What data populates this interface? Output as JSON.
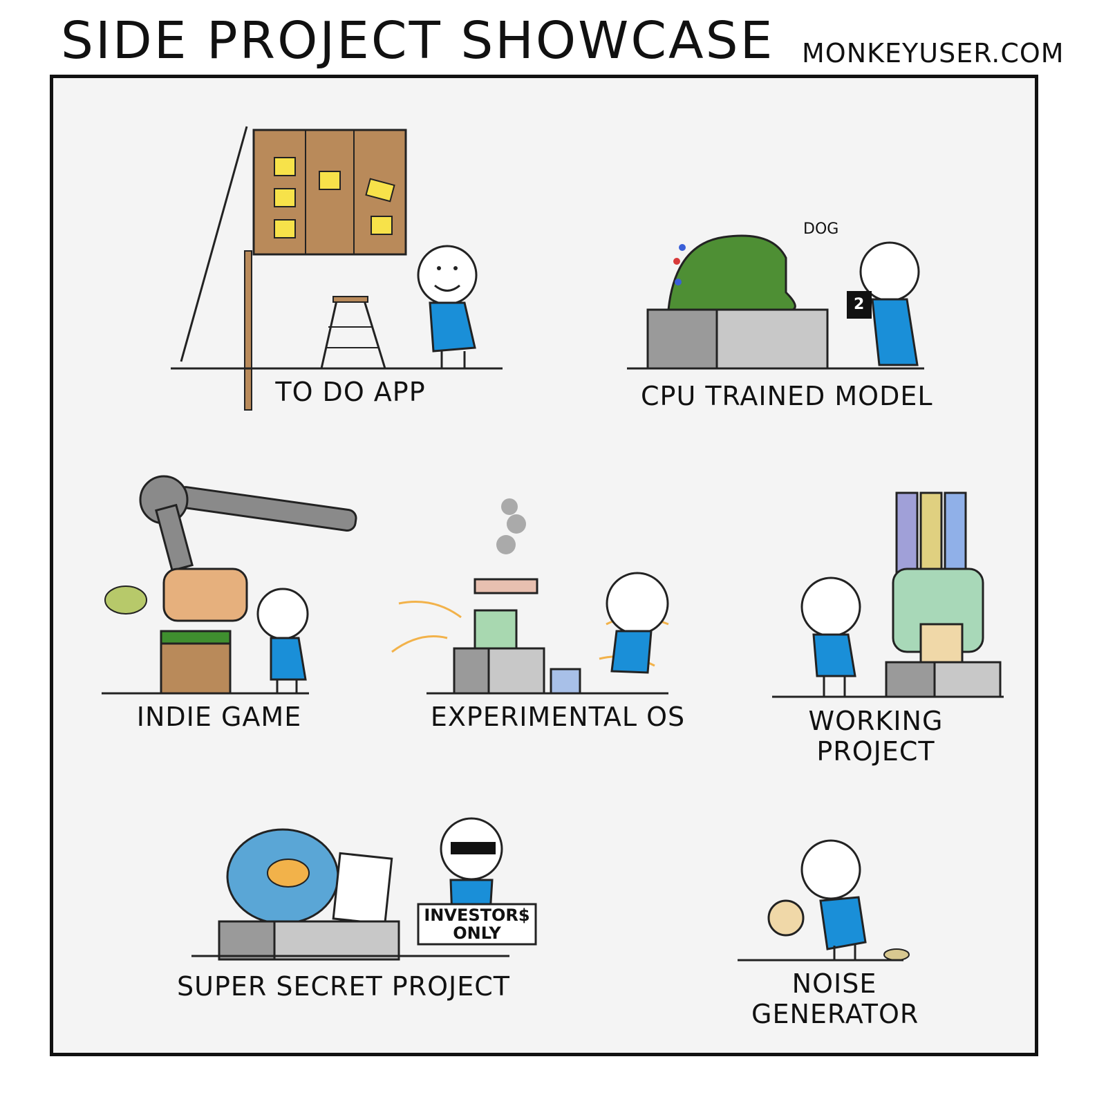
{
  "header": {
    "title": "SIDE PROJECT SHOWCASE",
    "credit": "MONKEYUSER.COM"
  },
  "exhibits": [
    {
      "caption": "TO DO APP"
    },
    {
      "caption": "CPU TRAINED MODEL",
      "speech": "DOG",
      "card": "2"
    },
    {
      "caption": "INDIE GAME"
    },
    {
      "caption": "EXPERIMENTAL OS"
    },
    {
      "caption_line1": "WORKING",
      "caption_line2": "PROJECT"
    },
    {
      "caption": "SUPER SECRET PROJECT",
      "sign_line1": "INVESTOR$",
      "sign_line2": "ONLY"
    },
    {
      "caption_line1": "NOISE",
      "caption_line2": "GENERATOR"
    }
  ],
  "colors": {
    "shirt": "#1a8fd8",
    "cork": "#b98a5a",
    "sticky": "#f7e24a",
    "pedestal_dark": "#9a9a9a",
    "pedestal_light": "#c8c8c8",
    "model_green": "#4e8f34",
    "water": "#5aa6d6"
  }
}
